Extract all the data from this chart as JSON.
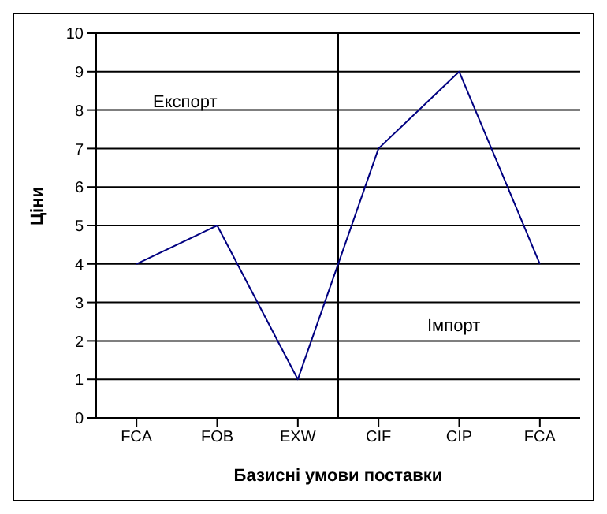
{
  "chart_data": {
    "type": "line",
    "xlabel": "Базисні умови поставки",
    "ylabel": "Ціни",
    "categories": [
      "FCA",
      "FOB",
      "EXW",
      "CIF",
      "CIP",
      "FCA"
    ],
    "series": [
      {
        "color": "#000080",
        "values": [
          4,
          5,
          1,
          7,
          9,
          4
        ]
      }
    ],
    "ylim": [
      0,
      10
    ],
    "yticks": [
      0,
      1,
      2,
      3,
      4,
      5,
      6,
      7,
      8,
      9,
      10
    ],
    "grid": "y",
    "marker": "none",
    "line_style": "solid",
    "legend": false,
    "annotations": [
      "Експорт",
      "Імпорт"
    ]
  }
}
